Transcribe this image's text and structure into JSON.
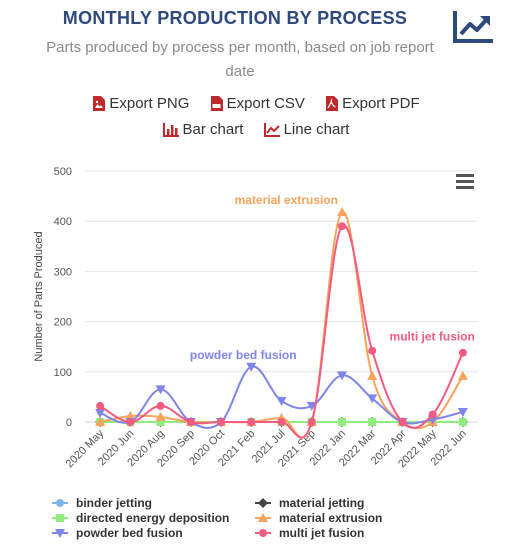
{
  "header": {
    "title": "MONTHLY PRODUCTION BY PROCESS",
    "subtitle_line1": "Parts produced by process per month, based on job report",
    "subtitle_line2": "date",
    "corner_icon": "chart-line-up-icon"
  },
  "exports": {
    "png": "Export PNG",
    "csv": "Export CSV",
    "pdf": "Export PDF",
    "bar": "Bar chart",
    "line": "Line chart",
    "icon_color": "#c0292b"
  },
  "chart_data": {
    "type": "line",
    "ylabel": "Number of Parts Produced",
    "xlabel": "",
    "ylim": [
      0,
      500
    ],
    "yticks": [
      0,
      100,
      200,
      300,
      400,
      500
    ],
    "categories": [
      "2020 May",
      "2020 Jun",
      "2020 Aug",
      "2020 Sep",
      "2020 Oct",
      "2021 Feb",
      "2021 Jul",
      "2021 Sep",
      "2022 Jan",
      "2022 Mar",
      "2022 Apr",
      "2022 May",
      "2022 Jun"
    ],
    "grid": true,
    "legend_position": "bottom",
    "series": [
      {
        "name": "binder jetting",
        "color": "#7cb5ec",
        "marker": "circle",
        "values": [
          0,
          0,
          0,
          0,
          0,
          0,
          0,
          0,
          0,
          0,
          0,
          0,
          0
        ]
      },
      {
        "name": "material jetting",
        "color": "#434348",
        "marker": "diamond",
        "values": [
          0,
          0,
          0,
          0,
          0,
          0,
          0,
          0,
          0,
          0,
          0,
          0,
          0
        ]
      },
      {
        "name": "directed energy deposition",
        "color": "#90ed7d",
        "marker": "square",
        "values": [
          0,
          0,
          0,
          0,
          0,
          0,
          0,
          0,
          0,
          0,
          0,
          0,
          0
        ]
      },
      {
        "name": "material extrusion",
        "color": "#f7a35c",
        "marker": "triangle",
        "values": [
          0,
          12,
          10,
          0,
          0,
          0,
          8,
          0,
          418,
          92,
          0,
          0,
          92
        ]
      },
      {
        "name": "powder bed fusion",
        "color": "#8085e9",
        "marker": "triangle-down",
        "values": [
          18,
          0,
          65,
          0,
          0,
          110,
          42,
          32,
          93,
          47,
          0,
          5,
          20
        ]
      },
      {
        "name": "multi jet fusion",
        "color": "#f15c80",
        "marker": "circle",
        "values": [
          32,
          0,
          32,
          0,
          0,
          0,
          0,
          0,
          390,
          142,
          0,
          15,
          138
        ]
      }
    ],
    "annotations": [
      {
        "text": "material extrusion",
        "series": "material extrusion",
        "point": "2022 Jan"
      },
      {
        "text": "powder bed fusion",
        "series": "powder bed fusion",
        "point": "2021 Feb"
      },
      {
        "text": "multi jet fusion",
        "series": "multi jet fusion",
        "point": "2022 Jun"
      }
    ]
  }
}
